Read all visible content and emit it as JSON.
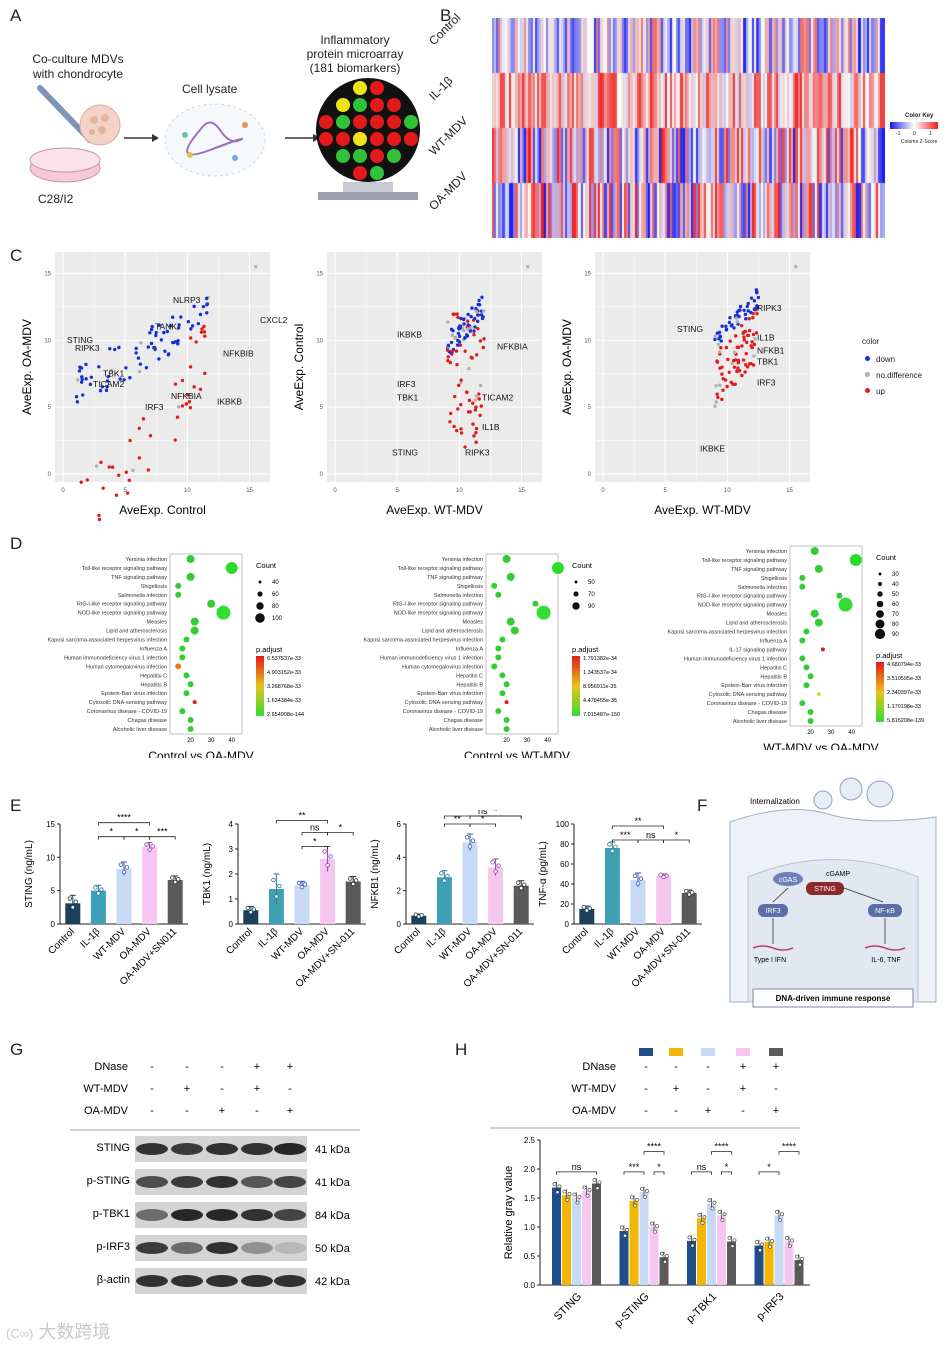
{
  "panels": {
    "A": {
      "letter": "A",
      "step1": "Co-culture MDVs\nwith chondrocyte",
      "step1_l1": "Co-culture MDVs",
      "step1_l2": "with chondrocyte",
      "dish_label": "C28/I2",
      "step2": "Cell lysate",
      "step3_l1": "Inflammatory",
      "step3_l2": "protein microarray",
      "step3_l3": "(181 biomarkers)"
    },
    "B": {
      "letter": "B",
      "rows": [
        "Control",
        "IL-1β",
        "WT-MDV",
        "OA-MDV"
      ],
      "key_title": "Color Key",
      "key_ticks": [
        "-1",
        "0",
        "1"
      ],
      "key_xlabel": "Column Z-Score"
    },
    "C": {
      "letter": "C",
      "legend_title": "color",
      "legend_items": [
        "down",
        "no.difference",
        "up"
      ],
      "plots": [
        {
          "xlabel": "AveExp. Control",
          "ylabel": "AveExp. OA-MDV",
          "labels": [
            "STING",
            "RIPK3",
            "TANK",
            "NLRP3",
            "CXCL2",
            "TBK1",
            "TICAM2",
            "NFKBIB",
            "IRF3",
            "NFKBIA",
            "IKBKB"
          ]
        },
        {
          "xlabel": "AveExp. WT-MDV",
          "ylabel": "AveExp. Control",
          "labels": [
            "IKBKB",
            "NFKBIA",
            "IRF3",
            "TBK1",
            "TICAM2",
            "IL1B",
            "STING",
            "RIPK3"
          ]
        },
        {
          "xlabel": "AveExp. WT-MDV",
          "ylabel": "AveExp. OA-MDV",
          "labels": [
            "RIPK3",
            "STING",
            "IL1B",
            "NFKB1",
            "TBK1",
            "IRF3",
            "IKBKE"
          ]
        }
      ],
      "ticks": [
        "0",
        "5",
        "10",
        "15"
      ]
    },
    "D": {
      "letter": "D",
      "titles": [
        "Control vs OA-MDV",
        "Control vs WT-MDV",
        "WT-MDV vs OA-MDV"
      ],
      "pathways": [
        "Yersinia infection",
        "Toll-like receptor signaling pathway",
        "TNF signaling pathway",
        "Shigellosis",
        "Salmonella infection",
        "RIG-I-like receptor signaling pathway",
        "NOD-like receptor signaling pathway",
        "Measles",
        "Lipid and atherosclerosis",
        "Kaposi sarcoma-associated herpesvirus infection",
        "Influenza A",
        "Human immunodeficiency virus 1 infection",
        "Human cytomegalovirus infection",
        "Hepatitis C",
        "Hepatitis B",
        "Epstein-Barr virus infection",
        "Cytosolic DNA-sensing pathway",
        "Coronavirus disease - COVID-19",
        "Chagas disease",
        "Alcoholic liver disease"
      ],
      "pathways3": [
        "Yersinia infection",
        "Toll-like receptor signaling pathway",
        "TNF signaling pathway",
        "Shigellosis",
        "Salmonella infection",
        "RIG-I-like receptor signaling pathway",
        "NOD-like receptor signaling pathway",
        "Measles",
        "Lipid and atherosclerosis",
        "Kaposi sarcoma-associated herpesvirus infection",
        "Influenza A",
        "IL-17 signaling pathway",
        "Human immunodeficiency virus 1 infection",
        "Hepatitis C",
        "Hepatitis B",
        "Epstein-Barr virus infection",
        "Cytosolic DNA-sensing pathway",
        "Coronavirus disease - COVID-19",
        "Chagas disease",
        "Alcoholic liver disease"
      ],
      "count_title": "Count",
      "counts1": [
        "40",
        "60",
        "80",
        "100"
      ],
      "counts2": [
        "50",
        "70",
        "90"
      ],
      "counts3": [
        "30",
        "40",
        "50",
        "60",
        "70",
        "80",
        "90"
      ],
      "padj_title": "p.adjust",
      "padj1": [
        "6.537537e-33",
        "4.903152e-33",
        "3.268768e-33",
        "1.634384e-33",
        "2.654908e-144"
      ],
      "padj2": [
        "1.791382e-34",
        "1.343537e-34",
        "8.956911e-35",
        "4.478455e-35",
        "7.015487e-150"
      ],
      "padj3": [
        "4.680794e-33",
        "3.510595e-33",
        "2.340397e-33",
        "1.170198e-33",
        "5.815208e-139"
      ],
      "xticks1": [
        "20",
        "30",
        "40"
      ],
      "xticks2": [
        "20",
        "30",
        "40"
      ],
      "xticks3": [
        "20",
        "30",
        "40"
      ]
    },
    "E": {
      "letter": "E",
      "groups": [
        "Control",
        "IL-1β",
        "WT-MDV",
        "OA-MDV",
        "OA-MDV+SN011"
      ],
      "groups_alt": [
        "Control",
        "IL-1β",
        "WT-MDV",
        "OA-MDV",
        "OA-MDV+SN-011"
      ],
      "sig_stars": [
        "****",
        "*",
        "*",
        "***",
        "**",
        "ns",
        "*",
        "*",
        "ns",
        "**",
        "*",
        "*",
        "**",
        "***",
        "ns",
        "*"
      ]
    },
    "F": {
      "letter": "F",
      "internalization": "Internalization",
      "cgas": "cGAS",
      "cgamp": "cGAMP",
      "sting": "STING",
      "irf3": "IRF3",
      "nfkb": "NF-κB",
      "type1": "Type I IFN",
      "il6": "IL-6, TNF",
      "response": "DNA-driven immune response"
    },
    "G": {
      "letter": "G",
      "conditions": [
        {
          "label": "DNase",
          "signs": [
            "-",
            "-",
            "-",
            "+",
            "+"
          ]
        },
        {
          "label": "WT-MDV",
          "signs": [
            "-",
            "+",
            "-",
            "+",
            "-"
          ]
        },
        {
          "label": "OA-MDV",
          "signs": [
            "-",
            "-",
            "+",
            "-",
            "+"
          ]
        }
      ],
      "blots": [
        {
          "label": "STING",
          "kda": "41 kDa"
        },
        {
          "label": "p-STING",
          "kda": "41 kDa"
        },
        {
          "label": "p-TBK1",
          "kda": "84 kDa"
        },
        {
          "label": "p-IRF3",
          "kda": "50 kDa"
        },
        {
          "label": "β-actin",
          "kda": "42 kDa"
        }
      ]
    },
    "H": {
      "letter": "H",
      "ylabel": "Relative gray value",
      "conditions": [
        {
          "label": "DNase",
          "signs": [
            "-",
            "-",
            "-",
            "+",
            "+"
          ]
        },
        {
          "label": "WT-MDV",
          "signs": [
            "-",
            "+",
            "-",
            "+",
            "-"
          ]
        },
        {
          "label": "OA-MDV",
          "signs": [
            "-",
            "-",
            "+",
            "-",
            "+"
          ]
        }
      ],
      "legend_colors": [
        "#1f4e8c",
        "#f2b705",
        "#c8d9f5",
        "#f5c6f0",
        "#5a5a5a"
      ],
      "categories": [
        "STING",
        "p-STING",
        "p-TBK1",
        "p-IRF3"
      ],
      "yticks": [
        "0.0",
        "0.5",
        "1.0",
        "1.5",
        "2.0",
        "2.5"
      ],
      "sig": [
        "ns",
        "****",
        "***",
        "*",
        "****",
        "ns",
        "*",
        "****",
        "*"
      ]
    }
  },
  "watermark": "大数跨境",
  "chart_data": [
    {
      "type": "bar",
      "title": "STING",
      "ylabel": "STING (ng/mL)",
      "ylim": [
        0,
        15
      ],
      "categories": [
        "Control",
        "IL-1β",
        "WT-MDV",
        "OA-MDV",
        "OA-MDV+SN011"
      ],
      "values": [
        3.1,
        5.0,
        8.3,
        11.5,
        6.6
      ],
      "errors": [
        1.2,
        0.8,
        1.0,
        0.7,
        0.6
      ],
      "yticks": [
        "0",
        "5",
        "10",
        "15"
      ]
    },
    {
      "type": "bar",
      "title": "TBK1",
      "ylabel": "TBK1 (ng/mL)",
      "ylim": [
        0,
        4
      ],
      "categories": [
        "Control",
        "IL-1β",
        "WT-MDV",
        "OA-MDV",
        "OA-MDV+SN-011"
      ],
      "values": [
        0.55,
        1.4,
        1.55,
        2.6,
        1.7
      ],
      "errors": [
        0.15,
        0.6,
        0.15,
        0.5,
        0.2
      ],
      "yticks": [
        "0",
        "1",
        "2",
        "3",
        "4"
      ]
    },
    {
      "type": "bar",
      "title": "NFKB1",
      "ylabel": "NFKB1 (ng/mL)",
      "ylim": [
        0,
        6
      ],
      "categories": [
        "Control",
        "IL-1β",
        "WT-MDV",
        "OA-MDV",
        "OA-MDV+SN-011"
      ],
      "values": [
        0.5,
        2.8,
        4.9,
        3.4,
        2.3
      ],
      "errors": [
        0.1,
        0.4,
        0.5,
        0.5,
        0.3
      ],
      "yticks": [
        "0",
        "2",
        "4",
        "6"
      ]
    },
    {
      "type": "bar",
      "title": "TNF-α",
      "ylabel": "TNF-α (pg/mL)",
      "ylim": [
        0,
        100
      ],
      "categories": [
        "Control",
        "IL-1β",
        "WT-MDV",
        "OA-MDV",
        "OA-MDV+SN-011"
      ],
      "values": [
        15,
        76,
        44,
        48,
        31
      ],
      "errors": [
        3,
        6,
        7,
        2,
        3
      ],
      "yticks": [
        "0",
        "20",
        "40",
        "60",
        "80",
        "100"
      ]
    },
    {
      "type": "bar",
      "title": "Relative gray value",
      "ylabel": "Relative gray value",
      "ylim": [
        0,
        2.5
      ],
      "categories": [
        "STING",
        "p-STING",
        "p-TBK1",
        "p-IRF3"
      ],
      "series": [
        {
          "name": "Control",
          "values": [
            1.68,
            0.93,
            0.76,
            0.68
          ]
        },
        {
          "name": "WT-MDV",
          "values": [
            1.55,
            1.45,
            1.15,
            0.74
          ]
        },
        {
          "name": "OA-MDV",
          "values": [
            1.5,
            1.6,
            1.4,
            1.2
          ]
        },
        {
          "name": "DNase+WT-MDV",
          "values": [
            1.62,
            1.0,
            1.2,
            0.75
          ]
        },
        {
          "name": "DNase+OA-MDV",
          "values": [
            1.75,
            0.48,
            0.75,
            0.43
          ]
        }
      ],
      "colors": [
        "#1f4e8c",
        "#f2b705",
        "#c8d9f5",
        "#f5c6f0",
        "#5a5a5a"
      ]
    }
  ]
}
